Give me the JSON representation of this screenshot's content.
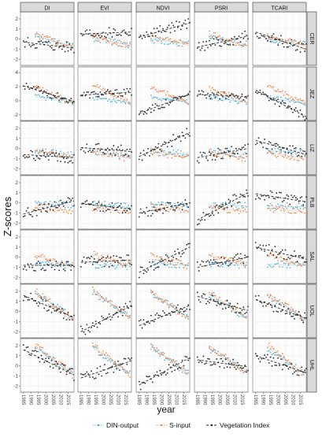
{
  "chart_data": {
    "type": "scatter",
    "ylabel": "Z-scores",
    "xlabel": "year",
    "facet_columns": [
      "DI",
      "EVI",
      "NDVI",
      "PSRI",
      "TCARI"
    ],
    "facet_rows": [
      "CER",
      "JEZ",
      "LIZ",
      "PLB",
      "SAL",
      "UOL",
      "UHL"
    ],
    "x_ticks": [
      1985,
      1990,
      1995,
      2000,
      2005,
      2010,
      2015
    ],
    "xlim": [
      1983,
      2019
    ],
    "y_ticks": [
      -2,
      -1,
      0,
      1,
      2
    ],
    "ylim": [
      -2.6,
      2.7
    ],
    "y_ticks_row2": [
      -2,
      0,
      2,
      4
    ],
    "ylim_row2": [
      -2.8,
      4.8
    ],
    "grid": true,
    "legend": "bottom",
    "legend_items": [
      {
        "label": "DIN-output",
        "color": "#3fa9d6",
        "style": "dotted"
      },
      {
        "label": "S-input",
        "color": "#ef7b38",
        "style": "dotted"
      },
      {
        "label": "Vegetation Index",
        "color": "#222222",
        "style": "dashed"
      }
    ],
    "series_years": {
      "DIN-output": [
        1993,
        2018
      ],
      "S-input": [
        1993,
        2018
      ],
      "Vegetation Index": [
        1985,
        2019
      ]
    },
    "trend_lines": {
      "Vegetation Index": [
        [
          [
            -0.3,
            -0.9
          ],
          [
            0.5,
            0.7
          ],
          [
            0.2,
            1.6
          ],
          [
            -0.8,
            0.3
          ],
          [
            0.7,
            -1.0
          ]
        ],
        [
          [
            2.1,
            -0.1
          ],
          [
            0.8,
            1.2
          ],
          [
            -1.8,
            0.9
          ],
          [
            0.9,
            0.6
          ],
          [
            1.5,
            -2.3
          ]
        ],
        [
          [
            -0.6,
            -0.9
          ],
          [
            0.1,
            -0.3
          ],
          [
            -0.8,
            1.6
          ],
          [
            -0.9,
            0.0
          ],
          [
            0.8,
            -0.6
          ]
        ],
        [
          [
            -1.1,
            0.2
          ],
          [
            -0.1,
            -0.6
          ],
          [
            -1.0,
            0.0
          ],
          [
            -1.7,
            1.0
          ],
          [
            0.9,
            0.1
          ]
        ],
        [
          [
            -0.8,
            -0.8
          ],
          [
            -0.5,
            -0.3
          ],
          [
            -1.5,
            1.0
          ],
          [
            -1.0,
            0.0
          ],
          [
            1.0,
            -0.2
          ]
        ],
        [
          [
            1.6,
            -0.6
          ],
          [
            -2.0,
            0.6
          ],
          [
            -1.4,
            0.6
          ],
          [
            1.5,
            0.1
          ],
          [
            1.2,
            -0.7
          ]
        ],
        [
          [
            1.6,
            -0.9
          ],
          [
            -1.2,
            0.5
          ],
          [
            -1.9,
            0.8
          ],
          [
            0.6,
            -0.1
          ],
          [
            1.0,
            -0.7
          ]
        ]
      ],
      "DIN-output": [
        [
          [
            0.3,
            -0.7
          ],
          [
            0.1,
            -0.6
          ],
          [
            0.0,
            -0.5
          ],
          [
            0.1,
            -0.5
          ],
          [
            0.0,
            -0.6
          ]
        ],
        [
          [
            0.6,
            -0.2
          ],
          [
            0.5,
            -0.2
          ],
          [
            0.6,
            -0.2
          ],
          [
            0.5,
            -0.2
          ],
          [
            0.4,
            -0.3
          ]
        ],
        [
          [
            -0.3,
            -0.6
          ],
          [
            -0.3,
            -0.7
          ],
          [
            -0.3,
            -0.5
          ],
          [
            -0.4,
            -0.6
          ],
          [
            -0.2,
            -0.5
          ]
        ],
        [
          [
            -0.1,
            -0.2
          ],
          [
            -0.1,
            -0.4
          ],
          [
            -0.1,
            -0.3
          ],
          [
            -0.2,
            -0.3
          ],
          [
            -0.3,
            -0.4
          ]
        ],
        [
          [
            -0.6,
            -0.8
          ],
          [
            -0.7,
            -0.9
          ],
          [
            -0.6,
            -0.8
          ],
          [
            -0.7,
            -0.8
          ],
          [
            -0.7,
            -0.8
          ]
        ],
        [
          [
            1.8,
            -0.6
          ],
          [
            1.9,
            -0.5
          ],
          [
            1.8,
            -0.6
          ],
          [
            1.7,
            -0.6
          ],
          [
            1.6,
            -0.7
          ]
        ],
        [
          [
            1.9,
            -0.8
          ],
          [
            1.8,
            -0.7
          ],
          [
            1.9,
            -0.9
          ],
          [
            1.7,
            -0.7
          ],
          [
            1.8,
            -0.8
          ]
        ]
      ],
      "S-input": [
        [
          [
            0.4,
            -0.8
          ],
          [
            0.3,
            -0.7
          ],
          [
            0.3,
            -0.6
          ],
          [
            0.5,
            -0.8
          ],
          [
            0.4,
            -0.7
          ]
        ],
        [
          [
            2.0,
            -0.3
          ],
          [
            2.2,
            -0.2
          ],
          [
            2.0,
            -0.3
          ],
          [
            1.8,
            -0.1
          ],
          [
            2.0,
            -0.2
          ]
        ],
        [
          [
            -0.2,
            -0.9
          ],
          [
            -0.2,
            -1.0
          ],
          [
            -0.3,
            -0.9
          ],
          [
            -0.3,
            -1.0
          ],
          [
            -0.4,
            -1.0
          ]
        ],
        [
          [
            -0.4,
            -0.8
          ],
          [
            -0.5,
            -0.9
          ],
          [
            -0.4,
            -0.8
          ],
          [
            -0.5,
            -0.8
          ],
          [
            -0.5,
            -0.9
          ]
        ],
        [
          [
            0.2,
            -0.9
          ],
          [
            0.3,
            -0.8
          ],
          [
            0.2,
            -0.9
          ],
          [
            0.2,
            -0.8
          ],
          [
            0.3,
            -0.8
          ]
        ],
        [
          [
            2.0,
            -0.7
          ],
          [
            2.1,
            -0.6
          ],
          [
            2.0,
            -0.7
          ],
          [
            1.9,
            -0.6
          ],
          [
            1.8,
            -0.7
          ]
        ],
        [
          [
            2.1,
            -0.9
          ],
          [
            2.0,
            -0.8
          ],
          [
            2.1,
            -0.8
          ],
          [
            2.0,
            -0.7
          ],
          [
            2.1,
            -0.9
          ]
        ]
      ]
    }
  }
}
